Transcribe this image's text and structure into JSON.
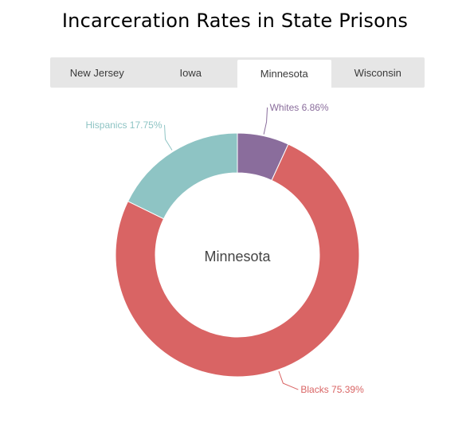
{
  "title": "Incarceration Rates in State Prisons",
  "tabs": [
    {
      "label": "New Jersey",
      "active": false
    },
    {
      "label": "Iowa",
      "active": false
    },
    {
      "label": "Minnesota",
      "active": true
    },
    {
      "label": "Wisconsin",
      "active": false
    }
  ],
  "chart_data": {
    "type": "pie",
    "donut": true,
    "center_label": "Minnesota",
    "slices": [
      {
        "name": "Whites",
        "value": 6.86,
        "label": "Whites 6.86%",
        "color": "#8a6d9c"
      },
      {
        "name": "Blacks",
        "value": 75.39,
        "label": "Blacks 75.39%",
        "color": "#d96464"
      },
      {
        "name": "Hispanics",
        "value": 17.75,
        "label": "Hispanics 17.75%",
        "color": "#8ec4c4"
      }
    ]
  }
}
